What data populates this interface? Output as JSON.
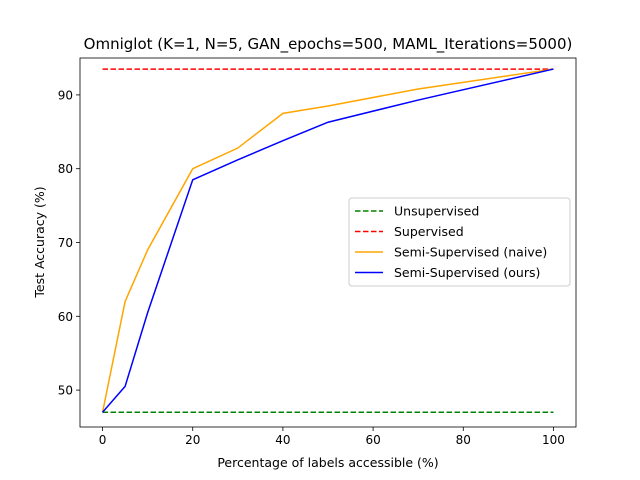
{
  "chart_data": {
    "type": "line",
    "title": "Omniglot (K=1, N=5, GAN_epochs=500, MAML_Iterations=5000)",
    "xlabel": "Percentage of labels accessible (%)",
    "ylabel": "Test Accuracy (%)",
    "xlim": [
      -5,
      105
    ],
    "ylim": [
      45,
      95
    ],
    "xticks": [
      0,
      20,
      40,
      60,
      80,
      100
    ],
    "yticks": [
      50,
      60,
      70,
      80,
      90
    ],
    "grid": false,
    "legend_position": "center-right",
    "series": [
      {
        "name": "Unsupervised",
        "color": "#008000",
        "dashed": true,
        "x": [
          0,
          100
        ],
        "y": [
          47.0,
          47.0
        ]
      },
      {
        "name": "Supervised",
        "color": "#ff0000",
        "dashed": true,
        "x": [
          0,
          100
        ],
        "y": [
          93.5,
          93.5
        ]
      },
      {
        "name": "Semi-Supervised (naive)",
        "color": "#ffa500",
        "dashed": false,
        "x": [
          0,
          5,
          10,
          20,
          30,
          40,
          50,
          70,
          100
        ],
        "y": [
          47.0,
          62.0,
          69.0,
          80.0,
          82.8,
          87.5,
          88.5,
          90.8,
          93.5
        ]
      },
      {
        "name": "Semi-Supervised (ours)",
        "color": "#0000ff",
        "dashed": false,
        "x": [
          0,
          5,
          10,
          20,
          30,
          40,
          50,
          70,
          100
        ],
        "y": [
          47.0,
          50.5,
          60.5,
          78.5,
          81.2,
          83.8,
          86.3,
          89.3,
          93.5
        ]
      }
    ]
  }
}
